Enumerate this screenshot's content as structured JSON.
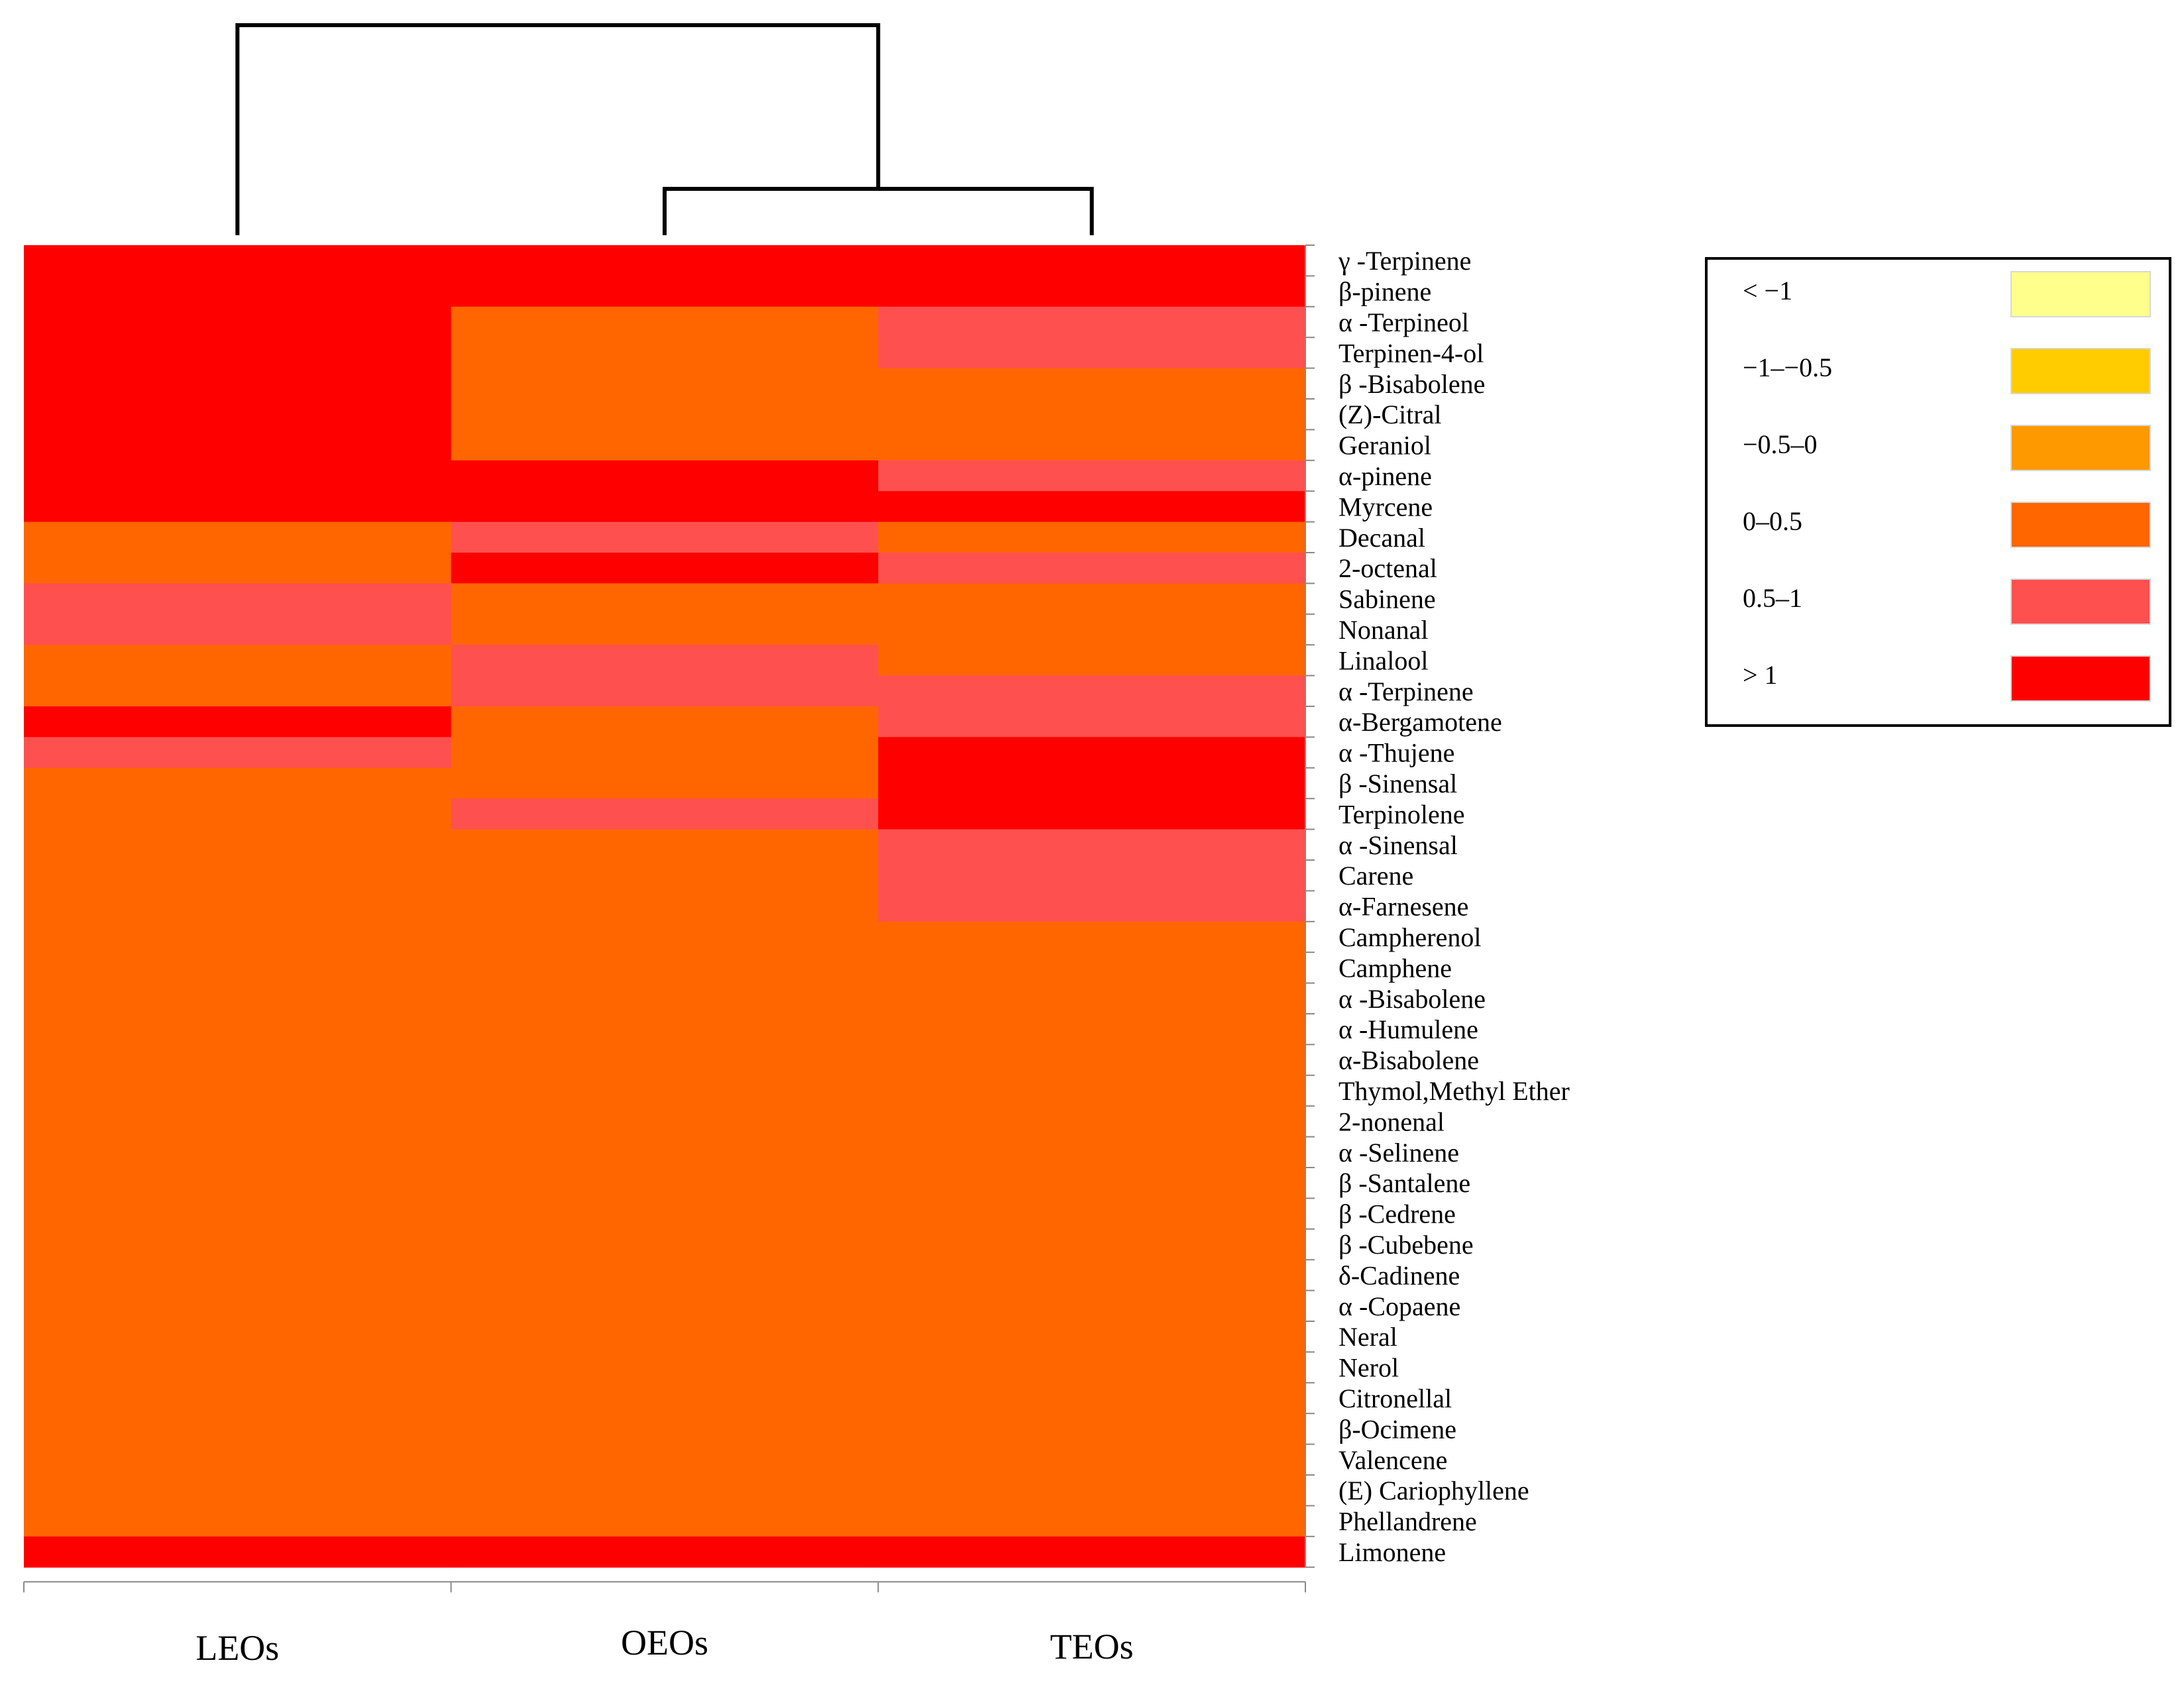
{
  "chart_data": {
    "type": "heatmap",
    "title": "",
    "xlabel": "",
    "ylabel": "",
    "columns": [
      "LEOs",
      "OEOs",
      "TEOs"
    ],
    "rows": [
      "γ -Terpinene",
      "β-pinene",
      "α -Terpineol",
      "Terpinen-4-ol",
      "β -Bisabolene",
      "(Z)-Citral",
      "Geraniol",
      "α-pinene",
      "Myrcene",
      "Decanal",
      "2-octenal",
      "Sabinene",
      "Nonanal",
      "Linalool",
      "α -Terpinene",
      "α-Bergamotene",
      "α -Thujene",
      "β -Sinensal",
      "Terpinolene",
      "α -Sinensal",
      "Carene",
      "α-Farnesene",
      "Campherenol",
      "Camphene",
      "α -Bisabolene",
      "α -Humulene",
      "α-Bisabolene",
      "Thymol,Methyl Ether",
      "2-nonenal",
      "α -Selinene",
      "β -Santalene",
      "β -Cedrene",
      "β -Cubebene",
      "δ-Cadinene",
      "α -Copaene",
      "Neral",
      "Nerol",
      "Citronellal",
      "β-Ocimene",
      "Valencene",
      "(E) Cariophyllene",
      "Phellandrene",
      "Limonene"
    ],
    "bin_values": [
      [
        5,
        5,
        5
      ],
      [
        5,
        5,
        5
      ],
      [
        5,
        3,
        4
      ],
      [
        5,
        3,
        4
      ],
      [
        5,
        3,
        3
      ],
      [
        5,
        3,
        3
      ],
      [
        5,
        3,
        3
      ],
      [
        5,
        5,
        4
      ],
      [
        5,
        5,
        5
      ],
      [
        3,
        4,
        3
      ],
      [
        3,
        5,
        4
      ],
      [
        4,
        3,
        3
      ],
      [
        4,
        3,
        3
      ],
      [
        3,
        4,
        3
      ],
      [
        3,
        4,
        4
      ],
      [
        5,
        3,
        4
      ],
      [
        4,
        3,
        5
      ],
      [
        3,
        3,
        5
      ],
      [
        3,
        4,
        5
      ],
      [
        3,
        3,
        4
      ],
      [
        3,
        3,
        4
      ],
      [
        3,
        3,
        4
      ],
      [
        3,
        3,
        3
      ],
      [
        3,
        3,
        3
      ],
      [
        3,
        3,
        3
      ],
      [
        3,
        3,
        3
      ],
      [
        3,
        3,
        3
      ],
      [
        3,
        3,
        3
      ],
      [
        3,
        3,
        3
      ],
      [
        3,
        3,
        3
      ],
      [
        3,
        3,
        3
      ],
      [
        3,
        3,
        3
      ],
      [
        3,
        3,
        3
      ],
      [
        3,
        3,
        3
      ],
      [
        3,
        3,
        3
      ],
      [
        3,
        3,
        3
      ],
      [
        3,
        3,
        3
      ],
      [
        3,
        3,
        3
      ],
      [
        3,
        3,
        3
      ],
      [
        3,
        3,
        3
      ],
      [
        3,
        3,
        3
      ],
      [
        3,
        3,
        3
      ],
      [
        5,
        5,
        5
      ]
    ],
    "legend": {
      "placement": "top-right",
      "bins": [
        {
          "label": "< −1",
          "color": "#ffff8c"
        },
        {
          "label": "−1–−0.5",
          "color": "#ffcc00"
        },
        {
          "label": "−0.5–0",
          "color": "#ff9900"
        },
        {
          "label": "0–0.5",
          "color": "#ff6600"
        },
        {
          "label": "0.5–1",
          "color": "#ff5050"
        },
        {
          "label": "> 1",
          "color": "#ff0000"
        }
      ]
    },
    "dendrogram": {
      "merges": [
        {
          "left": "OEOs",
          "right": "TEOs",
          "height": 1
        },
        {
          "left": "LEOs",
          "right": "OEOs+TEOs",
          "height": 2
        }
      ]
    }
  }
}
